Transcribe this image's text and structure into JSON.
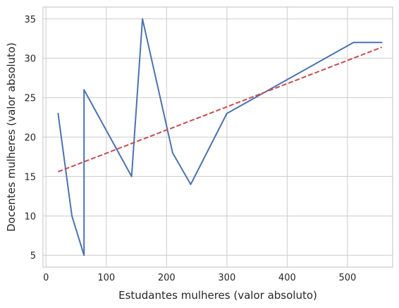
{
  "chart_data": {
    "type": "line",
    "xlabel": "Estudantes mulheres (valor absoluto)",
    "ylabel": "Docentes mulheres (valor absoluto)",
    "xlim": [
      -5,
      575
    ],
    "ylim": [
      3.5,
      36.5
    ],
    "xticks": [
      0,
      100,
      200,
      300,
      400,
      500
    ],
    "yticks": [
      5,
      10,
      15,
      20,
      25,
      30,
      35
    ],
    "grid": true,
    "legend": "none",
    "series": [
      {
        "style": "solid",
        "color": "#4c72b0",
        "x": [
          20,
          43,
          63,
          63,
          142,
          160,
          210,
          240,
          300,
          510,
          557
        ],
        "y": [
          23,
          10,
          5,
          26,
          15,
          35,
          18,
          14,
          23,
          32,
          32
        ]
      },
      {
        "style": "dashed",
        "color": "#c44e52",
        "x": [
          20,
          557
        ],
        "y": [
          15.6,
          31.4
        ]
      }
    ]
  }
}
